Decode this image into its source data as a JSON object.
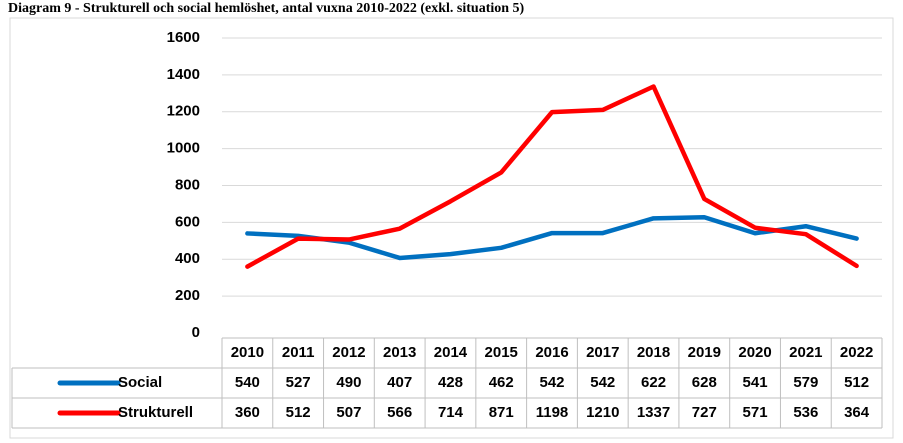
{
  "chart_data": {
    "type": "line",
    "title": "Diagram 9 - Strukturell och social hemlöshet, antal vuxna 2010-2022 (exkl. situation 5)",
    "categories": [
      "2010",
      "2011",
      "2012",
      "2013",
      "2014",
      "2015",
      "2016",
      "2017",
      "2018",
      "2019",
      "2020",
      "2021",
      "2022"
    ],
    "series": [
      {
        "name": "Social",
        "color": "#0070c0",
        "values": [
          540,
          527,
          490,
          407,
          428,
          462,
          542,
          542,
          622,
          628,
          541,
          579,
          512
        ]
      },
      {
        "name": "Strukturell",
        "color": "#ff0000",
        "values": [
          360,
          512,
          507,
          566,
          714,
          871,
          1198,
          1210,
          1337,
          727,
          571,
          536,
          364
        ]
      }
    ],
    "ylim": [
      0,
      1600
    ],
    "yticks": [
      0,
      200,
      400,
      600,
      800,
      1000,
      1200,
      1400,
      1600
    ],
    "grid": true
  }
}
